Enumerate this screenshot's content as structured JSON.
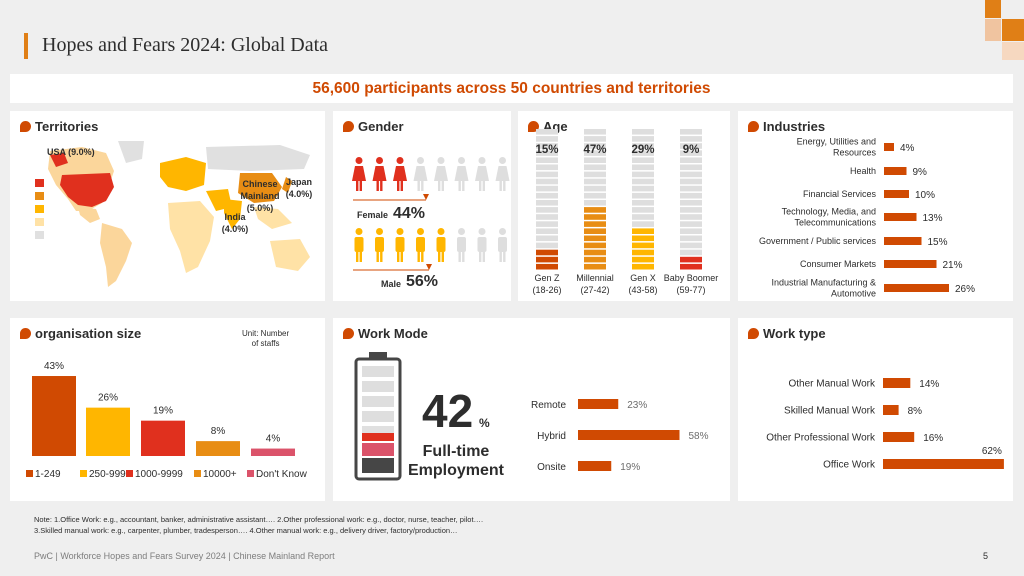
{
  "page": {
    "title": "Hopes and Fears 2024: Global Data",
    "banner": "56,600 participants across 50 countries and territories",
    "note_line1": "Note: 1.Office Work: e.g., accountant, banker, administrative assistant….   2.Other professional work: e.g., doctor, nurse, teacher, pilot….",
    "note_line2": "3.Skilled manual work: e.g., carpenter, plumber, tradesperson….   4.Other manual work: e.g., delivery driver, factory/production…",
    "footer": "PwC | Workforce Hopes and Fears Survey 2024 | Chinese Mainland Report",
    "page_number": "5"
  },
  "colors": {
    "accent": "#d04a02",
    "orange": "#e88d14",
    "yellow": "#ffb600",
    "red": "#e0301e",
    "rose": "#db536a",
    "grey": "#dedede",
    "dark": "#464646"
  },
  "territories": {
    "title": "Territories",
    "labels": {
      "usa": "USA (9.0%)",
      "china": "Chinese Mainland (5.0%)",
      "japan": "Japan (4.0%)",
      "india": "India (4.0%)"
    }
  },
  "gender": {
    "title": "Gender",
    "female_label": "Female",
    "female_value": "44%",
    "male_label": "Male",
    "male_value": "56%"
  },
  "workmode": {
    "title": "Work Mode",
    "big_value": "42",
    "big_unit": "%",
    "caption_line1": "Full-time",
    "caption_line2": "Employment"
  },
  "chart_data": [
    {
      "id": "age",
      "type": "bar",
      "title": "Age",
      "categories": [
        "Gen Z (18-26)",
        "Millennial (27-42)",
        "Gen X (43-58)",
        "Baby Boomer (59-77)"
      ],
      "category_lines": [
        [
          "Gen Z",
          "(18-26)"
        ],
        [
          "Millennial",
          "(27-42)"
        ],
        [
          "Gen X",
          "(43-58)"
        ],
        [
          "Baby Boomer",
          "(59-77)"
        ]
      ],
      "values": [
        15,
        47,
        29,
        9
      ],
      "value_labels": [
        "15%",
        "47%",
        "29%",
        "9%"
      ],
      "colors": [
        "#d04a02",
        "#e88d14",
        "#ffb600",
        "#e0301e"
      ],
      "ylim": [
        0,
        100
      ]
    },
    {
      "id": "industries",
      "type": "bar",
      "title": "Industries",
      "orientation": "horizontal",
      "categories": [
        "Energy, Utilities and Resources",
        "Health",
        "Financial Services",
        "Technology, Media, and Telecommunications",
        "Government / Public services",
        "Consumer Markets",
        "Industrial Manufacturing & Automotive"
      ],
      "category_lines": [
        [
          "Energy, Utilities and",
          "Resources"
        ],
        [
          "Health"
        ],
        [
          "Financial Services"
        ],
        [
          "Technology, Media, and",
          "Telecommunications"
        ],
        [
          "Government / Public services"
        ],
        [
          "Consumer Markets"
        ],
        [
          "Industrial Manufacturing &",
          "Automotive"
        ]
      ],
      "values": [
        4,
        9,
        10,
        13,
        15,
        21,
        26
      ],
      "value_labels": [
        "4%",
        "9%",
        "10%",
        "13%",
        "15%",
        "21%",
        "26%"
      ]
    },
    {
      "id": "orgsize",
      "type": "bar",
      "title": "organisation size",
      "unit_line1": "Unit: Number",
      "unit_line2": "of staffs",
      "categories": [
        "1-249",
        "250-999",
        "1000-9999",
        "10000+",
        "Don't Know"
      ],
      "values": [
        43,
        26,
        19,
        8,
        4
      ],
      "value_labels": [
        "43%",
        "26%",
        "19%",
        "8%",
        "4%"
      ],
      "colors": [
        "#d04a02",
        "#ffb600",
        "#e0301e",
        "#e88d14",
        "#db536a"
      ],
      "legend": "bottom"
    },
    {
      "id": "workmode",
      "type": "bar",
      "orientation": "horizontal",
      "categories": [
        "Remote",
        "Hybrid",
        "Onsite"
      ],
      "values": [
        23,
        58,
        19
      ],
      "value_labels": [
        "23%",
        "58%",
        "19%"
      ]
    },
    {
      "id": "worktype",
      "type": "bar",
      "title": "Work type",
      "orientation": "horizontal",
      "categories": [
        "Other Manual Work",
        "Skilled Manual Work",
        "Other Professional Work",
        "Office Work"
      ],
      "values": [
        14,
        8,
        16,
        62
      ],
      "value_labels": [
        "14%",
        "8%",
        "16%",
        "62%"
      ]
    }
  ]
}
